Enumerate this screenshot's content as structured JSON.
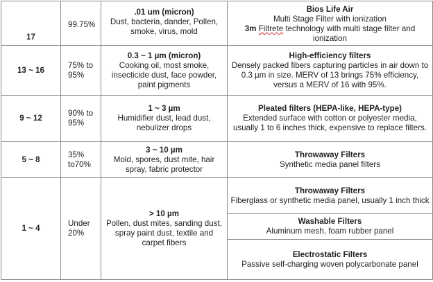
{
  "rows": [
    {
      "merv": "17",
      "efficiency": "99.75%",
      "particle_title": ".01 um (micron)",
      "particle_desc": "Dust, bacteria, dander, Pollen, smoke, virus, mold",
      "filters": [
        {
          "title": "Bios Life Air",
          "desc": "Multi Stage Filter with ionization",
          "extra_bold": "3m",
          "extra_mark": "Filtrete",
          "extra_rest": " technology with multi stage filter and ionization"
        }
      ]
    },
    {
      "merv": "13 ~ 16",
      "efficiency": "75% to 95%",
      "particle_title": "0.3 ~ 1 µm (micron)",
      "particle_desc": "Cooking oil, most smoke, insecticide dust, face powder, paint pigments",
      "filters": [
        {
          "title": "High-efficiency filters",
          "desc": "Densely packed fibers capturing particles in air down to 0.3 µm in size. MERV of 13 brings 75% efficiency, versus a MERV of 16 with 95%."
        }
      ]
    },
    {
      "merv": "9 ~ 12",
      "efficiency": "90% to 95%",
      "particle_title": "1 ~ 3 µm",
      "particle_desc": "Humidifier dust, lead dust, nebulizer drops",
      "filters": [
        {
          "title": "Pleated filters (HEPA-like, HEPA-type)",
          "desc": "Extended surface with cotton or polyester media, usually 1 to 6 inches thick, expensive to replace filters."
        }
      ]
    },
    {
      "merv": "5 ~ 8",
      "efficiency": "35% to70%",
      "particle_title": "3 ~ 10 µm",
      "particle_desc": "Mold, spores, dust mite, hair spray, fabric protector",
      "filters": [
        {
          "title": "Throwaway Filters",
          "desc": "Synthetic media panel filters"
        }
      ]
    },
    {
      "merv": "1 ~ 4",
      "efficiency": "Under 20%",
      "particle_title": "> 10 µm",
      "particle_desc": "Pollen, dust mites, sanding dust, spray paint dust, textile and carpet fibers",
      "filters": [
        {
          "title": "Throwaway Filters",
          "desc": "Fiberglass or synthetic media panel, usually 1 inch thick"
        },
        {
          "title": "Washable Filters",
          "desc": "Aluminum mesh, foam rubber panel"
        },
        {
          "title": "Electrostatic Filters",
          "desc": "Passive self-charging woven polycarbonate panel"
        }
      ]
    }
  ]
}
